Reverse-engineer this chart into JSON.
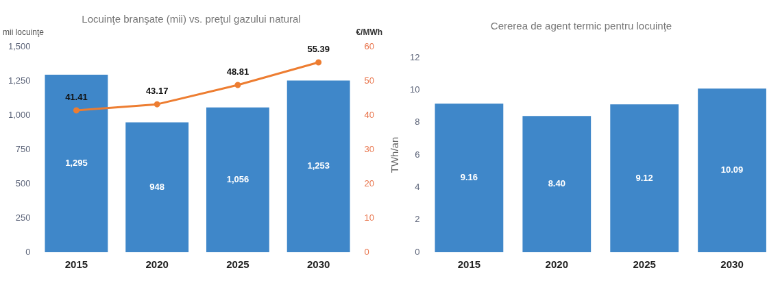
{
  "chart_data": [
    {
      "type": "bar",
      "title": "Locuinţe branşate (mii) vs. preţul gazului natural",
      "ylabel": "mii locuinţe",
      "y2label": "€/MWh",
      "categories": [
        "2015",
        "2020",
        "2025",
        "2030"
      ],
      "series": [
        {
          "color": "#3f87c9",
          "values": [
            1295,
            948,
            1056,
            1253
          ],
          "value_labels": [
            "1,295",
            "948",
            "1,056",
            "1,253"
          ]
        },
        {
          "type": "line",
          "axis": "y2",
          "color": "#ed7d31",
          "values": [
            41.41,
            43.17,
            48.81,
            55.39
          ],
          "value_labels": [
            "41.41",
            "43.17",
            "48.81",
            "55.39"
          ]
        }
      ],
      "ylim": [
        0,
        1500
      ],
      "yticks": [
        0,
        250,
        500,
        750,
        {
          "value": 1000,
          "label": "1,000"
        },
        {
          "value": 1250,
          "label": "1,250"
        },
        {
          "value": 1500,
          "label": "1,500"
        }
      ],
      "y2lim": [
        0,
        60
      ],
      "y2ticks": [
        0,
        10,
        20,
        30,
        40,
        50,
        60
      ],
      "marker": "circle",
      "grid": false,
      "legend": false
    },
    {
      "type": "bar",
      "title": "Cererea de agent termic pentru locuinţe",
      "ylabel": "TWh/an",
      "categories": [
        "2015",
        "2020",
        "2025",
        "2030"
      ],
      "series": [
        {
          "color": "#3f87c9",
          "values": [
            9.16,
            8.4,
            9.12,
            10.09
          ],
          "value_labels": [
            "9.16",
            "8.40",
            "9.12",
            "10.09"
          ]
        }
      ],
      "ylim": [
        0,
        12
      ],
      "yticks": [
        0,
        2,
        4,
        6,
        8,
        10,
        12
      ],
      "grid": false,
      "legend": false
    }
  ]
}
